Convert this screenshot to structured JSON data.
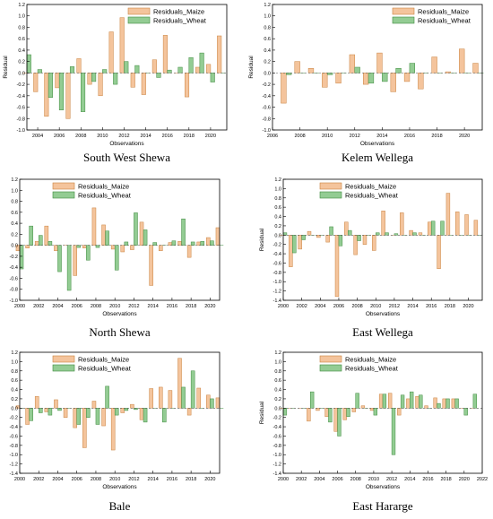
{
  "colors": {
    "maize_fill": "#F4C49C",
    "maize_stroke": "#C9823F",
    "wheat_fill": "#93CC93",
    "wheat_stroke": "#3E8A3E",
    "axis": "#000000"
  },
  "chart_data": [
    {
      "type": "bar",
      "title": "South West Shewa",
      "xlabel": "Observations",
      "ylabel": "Residual",
      "xlim": [
        2003,
        2021.5
      ],
      "ylim": [
        -1.0,
        1.2
      ],
      "yticks": [
        -1.0,
        -0.8,
        -0.6,
        -0.4,
        -0.2,
        0.0,
        0.2,
        0.4,
        0.6,
        0.8,
        1.0,
        1.2
      ],
      "xticks": [
        2004,
        2006,
        2008,
        2010,
        2012,
        2014,
        2016,
        2018,
        2020
      ],
      "xtick_labels": [
        "2004",
        "2006",
        "2008",
        "2010",
        "2012",
        "2014",
        "2016",
        "2018",
        "2020"
      ],
      "x": [
        2003,
        2004,
        2005,
        2006,
        2007,
        2008,
        2009,
        2010,
        2011,
        2012,
        2013,
        2014,
        2015,
        2016,
        2017,
        2018,
        2019,
        2020,
        2021
      ],
      "legend": "top-center",
      "series": [
        {
          "name": "Residuals_Maize",
          "values": [
            0.0,
            -0.33,
            -0.76,
            -0.26,
            -0.8,
            0.25,
            -0.2,
            -0.4,
            0.72,
            0.97,
            -0.25,
            -0.38,
            0.23,
            0.66,
            0.0,
            -0.42,
            0.1,
            0.15,
            0.65
          ]
        },
        {
          "name": "Residuals_Wheat",
          "values": [
            0.32,
            0.06,
            -0.43,
            -0.65,
            0.11,
            -0.68,
            -0.15,
            0.06,
            -0.2,
            0.2,
            0.13,
            0.0,
            -0.08,
            0.05,
            0.1,
            0.27,
            0.35,
            -0.16,
            0.0
          ]
        }
      ]
    },
    {
      "type": "bar",
      "title": "Kelem Wellega",
      "xlabel": "Observations",
      "ylabel": "Residual",
      "xlim": [
        2006,
        2021.3
      ],
      "ylim": [
        -1.0,
        1.2
      ],
      "yticks": [
        -1.0,
        -0.8,
        -0.6,
        -0.4,
        -0.2,
        0.0,
        0.2,
        0.4,
        0.6,
        0.8,
        1.0,
        1.2
      ],
      "xticks": [
        2006,
        2008,
        2010,
        2012,
        2014,
        2016,
        2018,
        2020
      ],
      "xtick_labels": [
        "2006",
        "2008",
        "2010",
        "2012",
        "2014",
        "2016",
        "2018",
        "2020"
      ],
      "x": [
        2007,
        2008,
        2009,
        2010,
        2011,
        2012,
        2013,
        2014,
        2015,
        2016,
        2017,
        2018,
        2019,
        2020,
        2021
      ],
      "legend": "top-center",
      "series": [
        {
          "name": "Residuals_Maize",
          "values": [
            -0.53,
            0.2,
            0.08,
            -0.25,
            -0.18,
            0.32,
            -0.2,
            0.35,
            -0.33,
            -0.15,
            -0.28,
            0.28,
            0.02,
            0.42,
            0.17
          ]
        },
        {
          "name": "Residuals_Wheat",
          "values": [
            -0.03,
            0.0,
            0.0,
            -0.03,
            0.0,
            0.1,
            -0.18,
            -0.15,
            0.08,
            0.17,
            0.0,
            0.0,
            0.0,
            0.0,
            0.0
          ]
        }
      ]
    },
    {
      "type": "bar",
      "title": "North Shewa",
      "xlabel": "Observations",
      "ylabel": "Residual",
      "xlim": [
        2000,
        2021
      ],
      "ylim": [
        -1.0,
        1.2
      ],
      "yticks": [
        -1.0,
        -0.8,
        -0.6,
        -0.4,
        -0.2,
        0.0,
        0.2,
        0.4,
        0.6,
        0.8,
        1.0,
        1.2
      ],
      "xticks": [
        2000,
        2002,
        2004,
        2006,
        2008,
        2010,
        2012,
        2014,
        2016,
        2018,
        2020
      ],
      "xtick_labels": [
        "2000",
        "2002",
        "2004",
        "2006",
        "2008",
        "2010",
        "2012",
        "2014",
        "2016",
        "2018",
        "2020"
      ],
      "x": [
        2000,
        2001,
        2002,
        2003,
        2004,
        2005,
        2006,
        2007,
        2008,
        2009,
        2010,
        2011,
        2012,
        2013,
        2014,
        2015,
        2016,
        2017,
        2018,
        2019,
        2020,
        2021
      ],
      "legend": "top-center",
      "series": [
        {
          "name": "Residuals_Maize",
          "values": [
            -0.1,
            -0.05,
            0.07,
            0.35,
            -0.1,
            0.0,
            -0.55,
            -0.05,
            0.68,
            0.37,
            -0.07,
            -0.12,
            -0.08,
            0.42,
            -0.73,
            -0.1,
            0.05,
            0.07,
            -0.22,
            0.06,
            0.14,
            0.32
          ]
        },
        {
          "name": "Residuals_Wheat",
          "values": [
            -0.43,
            0.35,
            0.18,
            0.07,
            -0.48,
            -0.82,
            -0.04,
            -0.27,
            -0.04,
            0.26,
            -0.45,
            0.06,
            0.59,
            0.28,
            0.05,
            0.0,
            0.08,
            0.48,
            0.06,
            0.07,
            0.08,
            0.0
          ]
        }
      ]
    },
    {
      "type": "bar",
      "title": "East Wellega",
      "xlabel": "Observations",
      "ylabel": "Residual",
      "xlim": [
        2000,
        2021.5
      ],
      "ylim": [
        -1.4,
        1.2
      ],
      "yticks": [
        -1.4,
        -1.2,
        -1.0,
        -0.8,
        -0.6,
        -0.4,
        -0.2,
        0.0,
        0.2,
        0.4,
        0.6,
        0.8,
        1.0,
        1.2
      ],
      "xticks": [
        2000,
        2002,
        2004,
        2006,
        2008,
        2010,
        2012,
        2014,
        2016,
        2018,
        2020
      ],
      "xtick_labels": [
        "2000",
        "2002",
        "2004",
        "2006",
        "2008",
        "2010",
        "2012",
        "2014",
        "2016",
        "2018",
        "2020"
      ],
      "x": [
        2000,
        2001,
        2002,
        2003,
        2004,
        2005,
        2006,
        2007,
        2008,
        2009,
        2010,
        2011,
        2012,
        2013,
        2014,
        2015,
        2016,
        2017,
        2018,
        2019,
        2020,
        2021
      ],
      "legend": "top-center",
      "series": [
        {
          "name": "Residuals_Maize",
          "values": [
            0.0,
            -0.68,
            -0.3,
            0.08,
            -0.05,
            -0.15,
            -1.32,
            0.28,
            -0.42,
            -0.2,
            -0.33,
            0.52,
            0.0,
            0.48,
            0.1,
            0.05,
            0.28,
            -0.72,
            0.9,
            0.5,
            0.44,
            0.32
          ]
        },
        {
          "name": "Residuals_Wheat",
          "values": [
            0.05,
            -0.38,
            -0.1,
            0.0,
            0.0,
            0.18,
            -0.23,
            0.1,
            -0.12,
            0.0,
            0.05,
            0.05,
            0.03,
            0.0,
            0.05,
            0.0,
            0.3,
            0.3,
            0.0,
            0.0,
            0.0,
            0.0
          ]
        }
      ]
    },
    {
      "type": "bar",
      "title": "Bale",
      "xlabel": "Observations",
      "ylabel": "Residual",
      "xlim": [
        2000,
        2021
      ],
      "ylim": [
        -1.4,
        1.2
      ],
      "yticks": [
        -1.4,
        -1.2,
        -1.0,
        -0.8,
        -0.6,
        -0.4,
        -0.2,
        0.0,
        0.2,
        0.4,
        0.6,
        0.8,
        1.0,
        1.2
      ],
      "xticks": [
        2000,
        2002,
        2004,
        2006,
        2008,
        2010,
        2012,
        2014,
        2016,
        2018,
        2020
      ],
      "xtick_labels": [
        "2000",
        "2002",
        "2004",
        "2006",
        "2008",
        "2010",
        "2012",
        "2014",
        "2016",
        "2018",
        "2020"
      ],
      "x": [
        2000,
        2001,
        2002,
        2003,
        2004,
        2005,
        2006,
        2007,
        2008,
        2009,
        2010,
        2011,
        2012,
        2013,
        2014,
        2015,
        2016,
        2017,
        2018,
        2019,
        2020,
        2021
      ],
      "legend": "top-center",
      "series": [
        {
          "name": "Residuals_Maize",
          "values": [
            0.05,
            -0.35,
            0.25,
            -0.08,
            0.18,
            -0.2,
            -0.42,
            -0.85,
            0.15,
            -0.38,
            -0.9,
            -0.1,
            0.08,
            -0.25,
            0.42,
            0.45,
            0.38,
            1.07,
            -0.15,
            0.43,
            0.28,
            0.22
          ]
        },
        {
          "name": "Residuals_Wheat",
          "values": [
            0.0,
            -0.27,
            -0.1,
            -0.15,
            -0.05,
            0.0,
            -0.35,
            -0.2,
            -0.35,
            0.47,
            -0.15,
            -0.05,
            -0.03,
            -0.3,
            0.0,
            -0.3,
            0.0,
            0.45,
            0.8,
            0.0,
            0.2,
            0.0
          ]
        }
      ]
    },
    {
      "type": "bar",
      "title": "East Hararge",
      "xlabel": "Observations",
      "ylabel": "Residual",
      "xlim": [
        2000,
        2022
      ],
      "ylim": [
        -1.4,
        1.2
      ],
      "yticks": [
        -1.4,
        -1.2,
        -1.0,
        -0.8,
        -0.6,
        -0.4,
        -0.2,
        0.0,
        0.2,
        0.4,
        0.6,
        0.8,
        1.0,
        1.2
      ],
      "xticks": [
        2000,
        2002,
        2004,
        2006,
        2008,
        2010,
        2012,
        2014,
        2016,
        2018,
        2020,
        2022
      ],
      "xtick_labels": [
        "2000",
        "2002",
        "2004",
        "2006",
        "2008",
        "2010",
        "2012",
        "2014",
        "2016",
        "2018",
        "2020",
        "2022"
      ],
      "x": [
        2000,
        2001,
        2002,
        2003,
        2004,
        2005,
        2006,
        2007,
        2008,
        2009,
        2010,
        2011,
        2012,
        2013,
        2014,
        2015,
        2016,
        2017,
        2018,
        2019,
        2020,
        2021
      ],
      "legend": "top-center",
      "series": [
        {
          "name": "Residuals_Maize",
          "values": [
            0.0,
            0.0,
            0.0,
            -0.28,
            -0.05,
            -0.18,
            -0.5,
            -0.25,
            -0.08,
            0.05,
            -0.05,
            0.3,
            0.32,
            -0.15,
            0.2,
            0.25,
            0.05,
            0.22,
            0.2,
            0.2,
            0.0,
            0.0
          ]
        },
        {
          "name": "Residuals_Wheat",
          "values": [
            -0.15,
            0.0,
            0.0,
            0.35,
            0.0,
            -0.3,
            -0.6,
            -0.18,
            0.32,
            0.0,
            -0.15,
            0.3,
            -1.0,
            0.28,
            0.35,
            0.28,
            0.0,
            0.1,
            0.2,
            0.2,
            -0.15,
            0.3
          ]
        }
      ]
    }
  ]
}
